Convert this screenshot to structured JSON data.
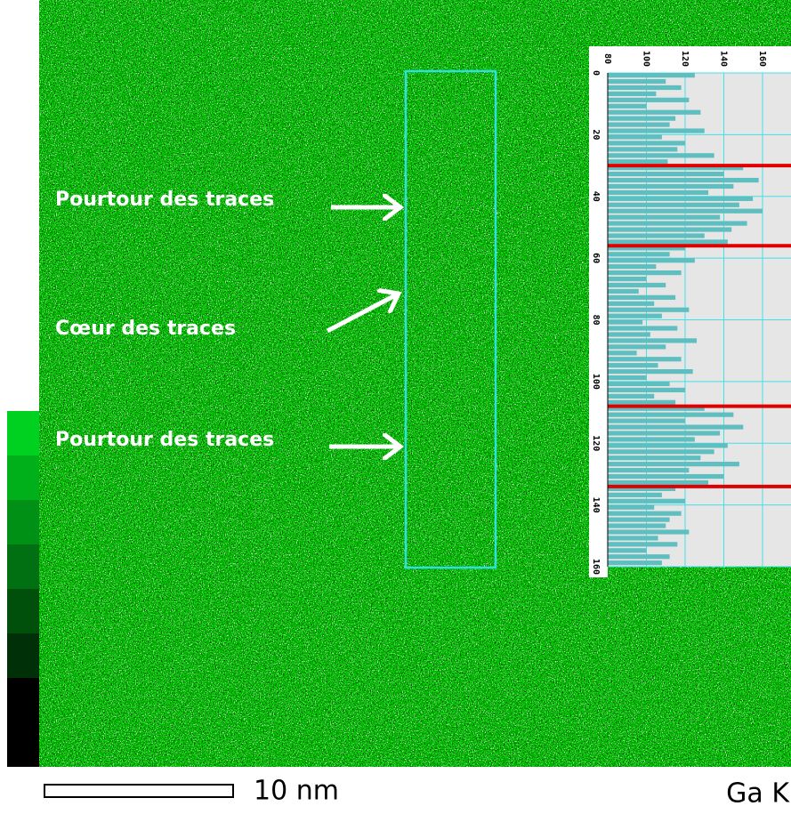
{
  "labels": [
    "Pourtour des traces",
    "Cœur  des traces",
    "Pourtour des traces"
  ],
  "scale_bar": "10 nm",
  "element": "Ga K",
  "chart_data": {
    "type": "bar",
    "orientation": "horizontal",
    "x": [
      0,
      2,
      4,
      6,
      8,
      10,
      12,
      14,
      16,
      18,
      20,
      22,
      24,
      26,
      28,
      30,
      32,
      34,
      36,
      38,
      40,
      42,
      44,
      46,
      48,
      50,
      52,
      54,
      56,
      58,
      60,
      62,
      64,
      66,
      68,
      70,
      72,
      74,
      76,
      78,
      80,
      82,
      84,
      86,
      88,
      90,
      92,
      94,
      96,
      98,
      100,
      102,
      104,
      106,
      108,
      110,
      112,
      114,
      116,
      118,
      120,
      122,
      124,
      126,
      128,
      130,
      132,
      134,
      136,
      138,
      140,
      142,
      144,
      146,
      148,
      150,
      152,
      154,
      156,
      158
    ],
    "values": [
      125,
      110,
      118,
      105,
      122,
      100,
      128,
      115,
      112,
      130,
      108,
      120,
      116,
      135,
      111,
      150,
      140,
      158,
      145,
      132,
      155,
      148,
      160,
      138,
      152,
      144,
      130,
      142,
      120,
      112,
      125,
      105,
      118,
      100,
      110,
      96,
      115,
      104,
      122,
      108,
      98,
      116,
      102,
      126,
      110,
      95,
      118,
      106,
      124,
      100,
      112,
      120,
      104,
      115,
      130,
      145,
      120,
      150,
      138,
      125,
      142,
      135,
      128,
      148,
      122,
      140,
      132,
      115,
      108,
      120,
      104,
      118,
      112,
      110,
      122,
      106,
      116,
      100,
      112,
      108
    ],
    "color": "#5fbfc0",
    "xlim": [
      0,
      160
    ],
    "xticks": [
      0,
      20,
      40,
      60,
      80,
      100,
      120,
      140,
      160
    ],
    "ylim": [
      80,
      160
    ],
    "yticks": [
      80,
      100,
      120,
      140,
      160
    ],
    "markers": [
      30,
      56,
      108,
      134
    ],
    "marker_color": "#e00000",
    "grid": true
  }
}
